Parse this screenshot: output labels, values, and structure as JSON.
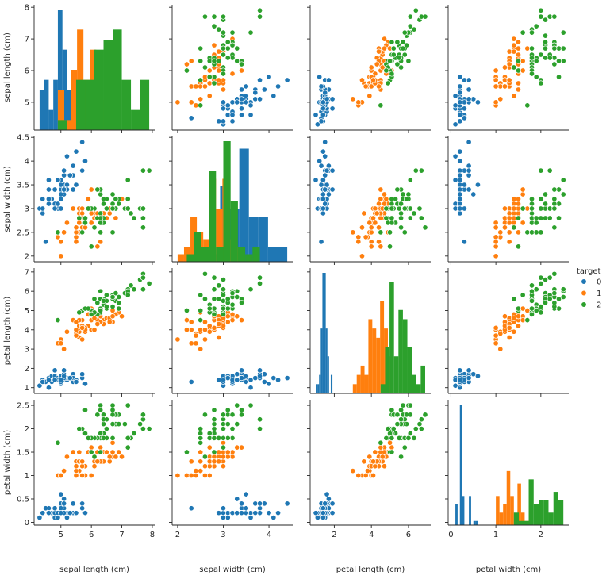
{
  "chart_data": {
    "type": "scatter",
    "kind": "pairplot",
    "variables": [
      "sepal length (cm)",
      "sepal width (cm)",
      "petal length (cm)",
      "petal width (cm)"
    ],
    "axis_labels": {
      "x": [
        "sepal length (cm)",
        "sepal width (cm)",
        "petal length (cm)",
        "petal width (cm)"
      ],
      "y": [
        "sepal length (cm)",
        "sepal width (cm)",
        "petal length (cm)",
        "petal width (cm)"
      ]
    },
    "axis_ranges": [
      [
        4.12,
        8.08
      ],
      [
        1.88,
        4.52
      ],
      [
        0.7,
        7.2
      ],
      [
        -0.06,
        2.62
      ]
    ],
    "ticks": [
      [
        5,
        6,
        7,
        8
      ],
      [
        2.0,
        2.5,
        3.0,
        3.5,
        4.0,
        4.5
      ],
      [
        1,
        2,
        3,
        4,
        5,
        6,
        7
      ],
      [
        0.0,
        0.5,
        1.0,
        1.5,
        2.0,
        2.5
      ]
    ],
    "x_ticks": [
      [
        5,
        6,
        7,
        8
      ],
      [
        2,
        3,
        4
      ],
      [
        2,
        4,
        6
      ],
      [
        0,
        1,
        2
      ]
    ],
    "grid": false,
    "diagonal": "histogram",
    "legend": {
      "title": "target",
      "position": "right",
      "entries": [
        "0",
        "1",
        "2"
      ]
    },
    "colors": [
      "#1f77b4",
      "#ff7f0e",
      "#2ca02c"
    ],
    "series": [
      {
        "name": "0",
        "columns": [
          "sepal length (cm)",
          "sepal width (cm)",
          "petal length (cm)",
          "petal width (cm)"
        ],
        "points": [
          [
            5.1,
            3.5,
            1.4,
            0.2
          ],
          [
            4.9,
            3.0,
            1.4,
            0.2
          ],
          [
            4.7,
            3.2,
            1.3,
            0.2
          ],
          [
            4.6,
            3.1,
            1.5,
            0.2
          ],
          [
            5.0,
            3.6,
            1.4,
            0.2
          ],
          [
            5.4,
            3.9,
            1.7,
            0.4
          ],
          [
            4.6,
            3.4,
            1.4,
            0.3
          ],
          [
            5.0,
            3.4,
            1.5,
            0.2
          ],
          [
            4.4,
            2.9,
            1.4,
            0.2
          ],
          [
            4.9,
            3.1,
            1.5,
            0.1
          ],
          [
            5.4,
            3.7,
            1.5,
            0.2
          ],
          [
            4.8,
            3.4,
            1.6,
            0.2
          ],
          [
            4.8,
            3.0,
            1.4,
            0.1
          ],
          [
            4.3,
            3.0,
            1.1,
            0.1
          ],
          [
            5.8,
            4.0,
            1.2,
            0.2
          ],
          [
            5.7,
            4.4,
            1.5,
            0.4
          ],
          [
            5.4,
            3.9,
            1.3,
            0.4
          ],
          [
            5.1,
            3.5,
            1.4,
            0.3
          ],
          [
            5.7,
            3.8,
            1.7,
            0.3
          ],
          [
            5.1,
            3.8,
            1.5,
            0.3
          ],
          [
            5.4,
            3.4,
            1.7,
            0.2
          ],
          [
            5.1,
            3.7,
            1.5,
            0.4
          ],
          [
            4.6,
            3.6,
            1.0,
            0.2
          ],
          [
            5.1,
            3.3,
            1.7,
            0.5
          ],
          [
            4.8,
            3.4,
            1.9,
            0.2
          ],
          [
            5.0,
            3.0,
            1.6,
            0.2
          ],
          [
            5.0,
            3.4,
            1.6,
            0.4
          ],
          [
            5.2,
            3.5,
            1.5,
            0.2
          ],
          [
            5.2,
            3.4,
            1.4,
            0.2
          ],
          [
            4.7,
            3.2,
            1.6,
            0.2
          ],
          [
            4.8,
            3.1,
            1.6,
            0.2
          ],
          [
            5.4,
            3.4,
            1.5,
            0.4
          ],
          [
            5.2,
            4.1,
            1.5,
            0.1
          ],
          [
            5.5,
            4.2,
            1.4,
            0.2
          ],
          [
            4.9,
            3.1,
            1.5,
            0.2
          ],
          [
            5.0,
            3.2,
            1.2,
            0.2
          ],
          [
            5.5,
            3.5,
            1.3,
            0.2
          ],
          [
            4.9,
            3.6,
            1.4,
            0.1
          ],
          [
            4.4,
            3.0,
            1.3,
            0.2
          ],
          [
            5.1,
            3.4,
            1.5,
            0.2
          ],
          [
            5.0,
            3.5,
            1.3,
            0.3
          ],
          [
            4.5,
            2.3,
            1.3,
            0.3
          ],
          [
            4.4,
            3.2,
            1.3,
            0.2
          ],
          [
            5.0,
            3.5,
            1.6,
            0.6
          ],
          [
            5.1,
            3.8,
            1.9,
            0.4
          ],
          [
            4.8,
            3.0,
            1.4,
            0.3
          ],
          [
            5.1,
            3.8,
            1.6,
            0.2
          ],
          [
            4.6,
            3.2,
            1.4,
            0.2
          ],
          [
            5.3,
            3.7,
            1.5,
            0.2
          ],
          [
            5.0,
            3.3,
            1.4,
            0.2
          ]
        ]
      },
      {
        "name": "1",
        "columns": [
          "sepal length (cm)",
          "sepal width (cm)",
          "petal length (cm)",
          "petal width (cm)"
        ],
        "points": [
          [
            7.0,
            3.2,
            4.7,
            1.4
          ],
          [
            6.4,
            3.2,
            4.5,
            1.5
          ],
          [
            6.9,
            3.1,
            4.9,
            1.5
          ],
          [
            5.5,
            2.3,
            4.0,
            1.3
          ],
          [
            6.5,
            2.8,
            4.6,
            1.5
          ],
          [
            5.7,
            2.8,
            4.5,
            1.3
          ],
          [
            6.3,
            3.3,
            4.7,
            1.6
          ],
          [
            4.9,
            2.4,
            3.3,
            1.0
          ],
          [
            6.6,
            2.9,
            4.6,
            1.3
          ],
          [
            5.2,
            2.7,
            3.9,
            1.4
          ],
          [
            5.0,
            2.0,
            3.5,
            1.0
          ],
          [
            5.9,
            3.0,
            4.2,
            1.5
          ],
          [
            6.0,
            2.2,
            4.0,
            1.0
          ],
          [
            6.1,
            2.9,
            4.7,
            1.4
          ],
          [
            5.6,
            2.9,
            3.6,
            1.3
          ],
          [
            6.7,
            3.1,
            4.4,
            1.4
          ],
          [
            5.6,
            3.0,
            4.5,
            1.5
          ],
          [
            5.8,
            2.7,
            4.1,
            1.0
          ],
          [
            6.2,
            2.2,
            4.5,
            1.5
          ],
          [
            5.6,
            2.5,
            3.9,
            1.1
          ],
          [
            5.9,
            3.2,
            4.8,
            1.8
          ],
          [
            6.1,
            2.8,
            4.0,
            1.3
          ],
          [
            6.3,
            2.5,
            4.9,
            1.5
          ],
          [
            6.1,
            2.8,
            4.7,
            1.2
          ],
          [
            6.4,
            2.9,
            4.3,
            1.3
          ],
          [
            6.6,
            3.0,
            4.4,
            1.4
          ],
          [
            6.8,
            2.8,
            4.8,
            1.4
          ],
          [
            6.7,
            3.0,
            5.0,
            1.7
          ],
          [
            6.0,
            2.9,
            4.5,
            1.5
          ],
          [
            5.7,
            2.6,
            3.5,
            1.0
          ],
          [
            5.5,
            2.4,
            3.8,
            1.1
          ],
          [
            5.5,
            2.4,
            3.7,
            1.0
          ],
          [
            5.8,
            2.7,
            3.9,
            1.2
          ],
          [
            6.0,
            2.7,
            5.1,
            1.6
          ],
          [
            5.4,
            3.0,
            4.5,
            1.5
          ],
          [
            6.0,
            3.4,
            4.5,
            1.6
          ],
          [
            6.7,
            3.1,
            4.7,
            1.5
          ],
          [
            6.3,
            2.3,
            4.4,
            1.3
          ],
          [
            5.6,
            3.0,
            4.1,
            1.3
          ],
          [
            5.5,
            2.5,
            4.0,
            1.3
          ],
          [
            5.5,
            2.6,
            4.4,
            1.2
          ],
          [
            6.1,
            3.0,
            4.6,
            1.4
          ],
          [
            5.8,
            2.6,
            4.0,
            1.2
          ],
          [
            5.0,
            2.3,
            3.3,
            1.0
          ],
          [
            5.6,
            2.7,
            4.2,
            1.3
          ],
          [
            5.7,
            3.0,
            4.2,
            1.2
          ],
          [
            5.7,
            2.9,
            4.2,
            1.3
          ],
          [
            6.2,
            2.9,
            4.3,
            1.3
          ],
          [
            5.1,
            2.5,
            3.0,
            1.1
          ],
          [
            5.7,
            2.8,
            4.1,
            1.3
          ]
        ]
      },
      {
        "name": "2",
        "columns": [
          "sepal length (cm)",
          "sepal width (cm)",
          "petal length (cm)",
          "petal width (cm)"
        ],
        "points": [
          [
            6.3,
            3.3,
            6.0,
            2.5
          ],
          [
            5.8,
            2.7,
            5.1,
            1.9
          ],
          [
            7.1,
            3.0,
            5.9,
            2.1
          ],
          [
            6.3,
            2.9,
            5.6,
            1.8
          ],
          [
            6.5,
            3.0,
            5.8,
            2.2
          ],
          [
            7.6,
            3.0,
            6.6,
            2.1
          ],
          [
            4.9,
            2.5,
            4.5,
            1.7
          ],
          [
            7.3,
            2.9,
            6.3,
            1.8
          ],
          [
            6.7,
            2.5,
            5.8,
            1.8
          ],
          [
            7.2,
            3.6,
            6.1,
            2.5
          ],
          [
            6.5,
            3.2,
            5.1,
            2.0
          ],
          [
            6.4,
            2.7,
            5.3,
            1.9
          ],
          [
            6.8,
            3.0,
            5.5,
            2.1
          ],
          [
            5.7,
            2.5,
            5.0,
            2.0
          ],
          [
            5.8,
            2.8,
            5.1,
            2.4
          ],
          [
            6.4,
            3.2,
            5.3,
            2.3
          ],
          [
            6.5,
            3.0,
            5.5,
            1.8
          ],
          [
            7.7,
            3.8,
            6.7,
            2.2
          ],
          [
            7.7,
            2.6,
            6.9,
            2.3
          ],
          [
            6.0,
            2.2,
            5.0,
            1.5
          ],
          [
            6.9,
            3.2,
            5.7,
            2.3
          ],
          [
            5.6,
            2.8,
            4.9,
            2.0
          ],
          [
            7.7,
            2.8,
            6.7,
            2.0
          ],
          [
            6.3,
            2.7,
            4.9,
            1.8
          ],
          [
            6.7,
            3.3,
            5.7,
            2.1
          ],
          [
            7.2,
            3.2,
            6.0,
            1.8
          ],
          [
            6.2,
            2.8,
            4.8,
            1.8
          ],
          [
            6.1,
            3.0,
            4.9,
            1.8
          ],
          [
            6.4,
            2.8,
            5.6,
            2.1
          ],
          [
            7.2,
            3.0,
            5.8,
            1.6
          ],
          [
            7.4,
            2.8,
            6.1,
            1.9
          ],
          [
            7.9,
            3.8,
            6.4,
            2.0
          ],
          [
            6.4,
            2.8,
            5.6,
            2.2
          ],
          [
            6.3,
            2.8,
            5.1,
            1.5
          ],
          [
            6.1,
            2.6,
            5.6,
            1.4
          ],
          [
            7.7,
            3.0,
            6.1,
            2.3
          ],
          [
            6.3,
            3.4,
            5.6,
            2.4
          ],
          [
            6.4,
            3.1,
            5.5,
            1.8
          ],
          [
            6.0,
            3.0,
            4.8,
            1.8
          ],
          [
            6.9,
            3.1,
            5.4,
            2.1
          ],
          [
            6.7,
            3.1,
            5.6,
            2.4
          ],
          [
            6.9,
            3.1,
            5.1,
            2.3
          ],
          [
            5.8,
            2.7,
            5.1,
            1.9
          ],
          [
            6.8,
            3.2,
            5.9,
            2.3
          ],
          [
            6.7,
            3.3,
            5.7,
            2.5
          ],
          [
            6.7,
            3.0,
            5.2,
            2.3
          ],
          [
            6.3,
            2.5,
            5.0,
            1.9
          ],
          [
            6.5,
            3.0,
            5.2,
            2.0
          ],
          [
            6.2,
            3.4,
            5.4,
            2.3
          ],
          [
            5.9,
            3.0,
            5.1,
            1.8
          ]
        ]
      }
    ]
  }
}
